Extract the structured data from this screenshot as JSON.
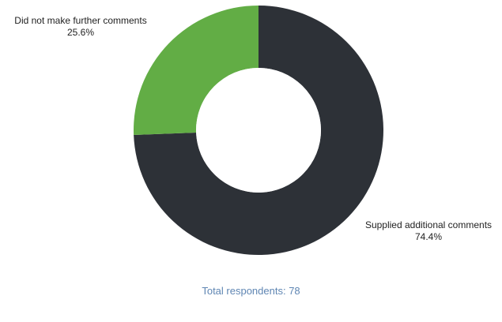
{
  "chart_data": {
    "type": "pie",
    "donut": true,
    "slices": [
      {
        "label": "Supplied additional comments",
        "percent_label": "74.4%",
        "value": 74.4,
        "color": "#2d3137"
      },
      {
        "label": "Did not make further comments",
        "percent_label": "25.6%",
        "value": 25.6,
        "color": "#62ad45"
      }
    ],
    "total_text": "Total respondents: 78",
    "total_color": "#5f86b3",
    "hole_color": "#ffffff"
  }
}
